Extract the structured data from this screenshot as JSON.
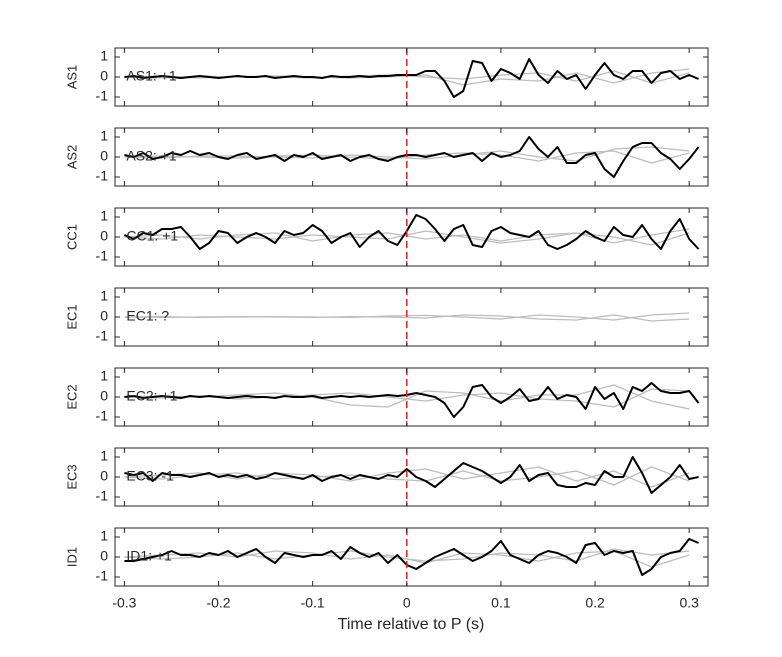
{
  "chart_data": {
    "type": "line",
    "xlabel": "Time relative to P (s)",
    "xlim": [
      -0.31,
      0.32
    ],
    "xticks": [
      -0.3,
      -0.2,
      -0.1,
      0,
      0.1,
      0.2,
      0.3
    ],
    "vline": {
      "x": 0,
      "color": "#e02020"
    },
    "x": [
      -0.3,
      -0.29,
      -0.28,
      -0.27,
      -0.26,
      -0.25,
      -0.24,
      -0.23,
      -0.22,
      -0.21,
      -0.2,
      -0.19,
      -0.18,
      -0.17,
      -0.16,
      -0.15,
      -0.14,
      -0.13,
      -0.12,
      -0.11,
      -0.1,
      -0.09,
      -0.08,
      -0.07,
      -0.06,
      -0.05,
      -0.04,
      -0.03,
      -0.02,
      -0.01,
      0,
      0.01,
      0.02,
      0.03,
      0.04,
      0.05,
      0.06,
      0.07,
      0.08,
      0.09,
      0.1,
      0.11,
      0.12,
      0.13,
      0.14,
      0.15,
      0.16,
      0.17,
      0.18,
      0.19,
      0.2,
      0.21,
      0.22,
      0.23,
      0.24,
      0.25,
      0.26,
      0.27,
      0.28,
      0.29,
      0.3,
      0.31
    ],
    "x_gray": [
      -0.3,
      -0.26,
      -0.22,
      -0.18,
      -0.14,
      -0.1,
      -0.06,
      -0.02,
      0.02,
      0.06,
      0.1,
      0.14,
      0.18,
      0.22,
      0.26,
      0.3
    ],
    "panels": [
      {
        "ylabel": "AS1",
        "annotation": "AS1: +1",
        "annotation_color": "#b01818",
        "ylim": [
          -1.45,
          1.45
        ],
        "yticks": [
          -1,
          0,
          1
        ],
        "series": [
          {
            "color": "#bdbdbd",
            "values": [
              0,
              0.05,
              -0.05,
              0.05,
              0,
              -0.05,
              0.05,
              0.1,
              0,
              -0.1,
              0.1,
              0.2,
              -0.2,
              0.3,
              -0.3,
              0.2
            ]
          },
          {
            "color": "#bdbdbd",
            "values": [
              0,
              -0.05,
              0.05,
              0,
              0.05,
              0,
              -0.05,
              0,
              0.1,
              -0.4,
              -0.1,
              -0.2,
              0.2,
              -0.3,
              0.2,
              0.4
            ]
          },
          {
            "color": "#000000",
            "values": [
              0,
              0.05,
              -0.05,
              0,
              0.05,
              0,
              -0.05,
              0,
              0.05,
              0,
              -0.05,
              0,
              0.05,
              0,
              0,
              0.05,
              -0.05,
              0,
              0.05,
              0,
              0,
              -0.05,
              0.05,
              0,
              0,
              0.05,
              0,
              0.05,
              0.05,
              0.1,
              0.1,
              0.1,
              0.3,
              0.3,
              -0.2,
              -1.0,
              -0.7,
              0.8,
              0.7,
              -0.2,
              0.4,
              0.2,
              -0.1,
              0.9,
              0.1,
              -0.3,
              0.3,
              -0.1,
              0.1,
              -0.6,
              0.1,
              0.7,
              0.1,
              -0.1,
              0.3,
              0.3,
              -0.3,
              0.2,
              0.3,
              -0.1,
              0.1,
              -0.1
            ]
          }
        ]
      },
      {
        "ylabel": "AS2",
        "annotation": "AS2: +1",
        "annotation_color": "#b01818",
        "ylim": [
          -1.45,
          1.45
        ],
        "yticks": [
          -1,
          0,
          1
        ],
        "series": [
          {
            "color": "#bdbdbd",
            "values": [
              0,
              0.05,
              0,
              -0.05,
              0.05,
              0.1,
              0,
              -0.1,
              0.1,
              0.2,
              0.1,
              -0.2,
              0.2,
              0.3,
              -0.3,
              0.2
            ]
          },
          {
            "color": "#bdbdbd",
            "values": [
              0,
              -0.05,
              0.05,
              0.05,
              0,
              -0.05,
              0.1,
              0,
              -0.1,
              0.1,
              0.3,
              0,
              -0.2,
              0.4,
              0.5,
              0.3
            ]
          },
          {
            "color": "#000000",
            "values": [
              0.1,
              0.0,
              0.2,
              -0.1,
              0.0,
              0.2,
              0.1,
              0.3,
              0.1,
              0.2,
              0.0,
              -0.1,
              0.1,
              0.2,
              -0.1,
              0.0,
              0.1,
              -0.2,
              0.1,
              0.0,
              0.2,
              -0.1,
              0.0,
              0.1,
              -0.2,
              0.0,
              0.1,
              -0.1,
              -0.2,
              0.0,
              0.1,
              0.1,
              0.0,
              0.1,
              0.2,
              0.0,
              0.1,
              0.2,
              -0.2,
              0.2,
              0.0,
              0.1,
              0.3,
              1.0,
              0.4,
              0.0,
              0.5,
              -0.3,
              -0.3,
              0.1,
              0.2,
              -0.6,
              -1.0,
              -0.2,
              0.5,
              0.7,
              0.7,
              0.2,
              -0.1,
              -0.6,
              -0.1,
              0.5
            ]
          }
        ]
      },
      {
        "ylabel": "CC1",
        "annotation": "CC1: +1",
        "annotation_color": "#b01818",
        "ylim": [
          -1.45,
          1.45
        ],
        "yticks": [
          -1,
          0,
          1
        ],
        "series": [
          {
            "color": "#bdbdbd",
            "values": [
              0,
              0.1,
              -0.1,
              0.1,
              0.2,
              -0.2,
              0.1,
              0.2,
              -0.1,
              0.1,
              -0.2,
              0.1,
              0.2,
              -0.3,
              0.1,
              0.4
            ]
          },
          {
            "color": "#bdbdbd",
            "values": [
              0,
              -0.1,
              0.1,
              0,
              -0.1,
              0.1,
              0,
              -0.1,
              0.3,
              0,
              -0.3,
              -0.1,
              0.2,
              0,
              -0.4,
              0.2
            ]
          },
          {
            "color": "#000000",
            "values": [
              0.1,
              -0.1,
              0.2,
              0.1,
              0.4,
              0.4,
              0.5,
              0.0,
              -0.6,
              -0.3,
              0.3,
              0.2,
              -0.3,
              0.0,
              0.2,
              0.0,
              -0.3,
              0.3,
              0.1,
              0.2,
              0.6,
              0.3,
              -0.3,
              0.0,
              0.2,
              -0.5,
              0.0,
              0.3,
              -0.2,
              -0.4,
              0.3,
              1.1,
              0.9,
              0.4,
              -0.2,
              0.4,
              0.6,
              -0.4,
              -0.5,
              0.3,
              0.5,
              0.2,
              0.1,
              0.0,
              0.3,
              -0.4,
              -0.6,
              -0.4,
              -0.1,
              0.3,
              0.0,
              -0.2,
              0.5,
              0.1,
              0.0,
              0.6,
              -0.1,
              -0.6,
              0.3,
              0.9,
              -0.1,
              -0.6
            ]
          }
        ]
      },
      {
        "ylabel": "EC1",
        "annotation": "EC1: ?",
        "annotation_color": "#9a9a9a",
        "ylim": [
          -1.45,
          1.45
        ],
        "yticks": [
          -1,
          0,
          1
        ],
        "series": [
          {
            "color": "#bdbdbd",
            "values": [
              0,
              0.02,
              -0.02,
              0,
              0.02,
              0,
              -0.02,
              0.05,
              0.08,
              0,
              -0.1,
              0.1,
              0,
              -0.15,
              0.1,
              0.2
            ]
          },
          {
            "color": "#bdbdbd",
            "values": [
              0,
              -0.02,
              0,
              0.02,
              0,
              -0.02,
              0.02,
              0,
              -0.05,
              0.1,
              0.05,
              -0.1,
              -0.15,
              0.1,
              -0.2,
              -0.1
            ]
          }
        ]
      },
      {
        "ylabel": "EC2",
        "annotation": "EC2: +1",
        "annotation_color": "#b01818",
        "ylim": [
          -1.45,
          1.45
        ],
        "yticks": [
          -1,
          0,
          1
        ],
        "series": [
          {
            "color": "#bdbdbd",
            "values": [
              0,
              0.05,
              0,
              0.1,
              0.2,
              0,
              -0.4,
              -0.5,
              0.3,
              0.2,
              -0.2,
              0.1,
              0.1,
              0.6,
              -0.2,
              -0.6
            ]
          },
          {
            "color": "#bdbdbd",
            "values": [
              0,
              -0.05,
              0.05,
              -0.1,
              0,
              0.1,
              0.2,
              0,
              -0.2,
              0.1,
              0.2,
              -0.1,
              -0.2,
              -0.5,
              0.4,
              0.3
            ]
          },
          {
            "color": "#000000",
            "values": [
              0,
              0.05,
              -0.05,
              0,
              0.05,
              0,
              -0.05,
              0.05,
              0,
              0.05,
              0,
              -0.05,
              0,
              0.05,
              0,
              0,
              -0.05,
              0.05,
              0,
              0,
              0.05,
              -0.05,
              0,
              0.05,
              0,
              0.05,
              0,
              0.05,
              0.1,
              0.05,
              0.1,
              0.2,
              0.1,
              0.0,
              -0.3,
              -1.0,
              -0.5,
              0.5,
              0.6,
              0.0,
              -0.3,
              0.0,
              0.4,
              -0.2,
              -0.1,
              0.5,
              -0.1,
              0.1,
              0.0,
              -0.6,
              0.5,
              -0.1,
              0.2,
              -0.6,
              0.5,
              0.3,
              0.7,
              0.3,
              0.2,
              0.2,
              0.3,
              -0.3
            ]
          }
        ]
      },
      {
        "ylabel": "EC3",
        "annotation": "EC3: -1",
        "annotation_color": "#1a2aa8",
        "ylim": [
          -1.45,
          1.45
        ],
        "yticks": [
          -1,
          0,
          1
        ],
        "series": [
          {
            "color": "#bdbdbd",
            "values": [
              0,
              0.1,
              0.2,
              -0.1,
              0.2,
              0.1,
              -0.2,
              0.2,
              0.4,
              -0.1,
              0.2,
              0.5,
              -0.2,
              0.3,
              -0.5,
              0.2
            ]
          },
          {
            "color": "#bdbdbd",
            "values": [
              0,
              -0.1,
              0.1,
              0.2,
              -0.1,
              0,
              0.1,
              -0.1,
              -0.2,
              0.3,
              -0.2,
              0,
              0.3,
              -0.4,
              0.5,
              -0.2
            ]
          },
          {
            "color": "#000000",
            "values": [
              0.2,
              0.1,
              0.2,
              -0.2,
              0.2,
              0.1,
              0.1,
              0.0,
              0.1,
              0.2,
              0.0,
              0.1,
              0.0,
              0.1,
              -0.1,
              0.0,
              0.2,
              0.1,
              0.0,
              -0.1,
              0.1,
              -0.2,
              0.0,
              0.1,
              -0.1,
              0.1,
              0.0,
              -0.1,
              0.1,
              0.0,
              0.4,
              0.0,
              -0.2,
              -0.5,
              -0.1,
              0.3,
              0.7,
              0.5,
              0.3,
              0.0,
              -0.3,
              0.0,
              0.6,
              -0.2,
              0.1,
              0.2,
              -0.4,
              -0.5,
              -0.5,
              -0.3,
              -0.4,
              0.3,
              0.0,
              0.0,
              1.0,
              0.2,
              -0.8,
              -0.4,
              0.0,
              0.6,
              -0.1,
              0.0
            ]
          }
        ]
      },
      {
        "ylabel": "ID1",
        "annotation": "ID1: +1",
        "annotation_color": "#b01818",
        "ylim": [
          -1.45,
          1.45
        ],
        "yticks": [
          -1,
          0,
          1
        ],
        "series": [
          {
            "color": "#bdbdbd",
            "values": [
              0,
              0.1,
              0.2,
              0,
              0.3,
              0.2,
              -0.1,
              0.1,
              -0.3,
              0.2,
              0.1,
              -0.2,
              0.2,
              0.3,
              -0.5,
              0.1
            ]
          },
          {
            "color": "#bdbdbd",
            "values": [
              0,
              -0.1,
              0,
              0.2,
              -0.1,
              0.1,
              0.3,
              0,
              -0.2,
              -0.1,
              0.2,
              0.1,
              -0.2,
              0.4,
              0.1,
              0.3
            ]
          },
          {
            "color": "#000000",
            "values": [
              -0.2,
              -0.2,
              -0.1,
              0.0,
              0.1,
              0.3,
              0.1,
              0.1,
              0.0,
              0.2,
              0.1,
              0.3,
              0.0,
              0.2,
              0.4,
              0.0,
              -0.3,
              0.2,
              0.1,
              0.0,
              0.1,
              0.1,
              0.3,
              -0.1,
              0.5,
              0.2,
              0.0,
              0.2,
              -0.3,
              0.1,
              -0.4,
              -0.6,
              -0.3,
              0.0,
              0.2,
              0.4,
              0.1,
              -0.2,
              0.0,
              0.3,
              0.8,
              0.1,
              -0.1,
              -0.3,
              0.1,
              0.3,
              0.2,
              0.0,
              -0.3,
              0.6,
              0.7,
              0.1,
              0.3,
              0.2,
              0.3,
              -0.9,
              -0.6,
              0.0,
              0.2,
              0.3,
              0.9,
              0.7
            ]
          }
        ]
      }
    ]
  }
}
